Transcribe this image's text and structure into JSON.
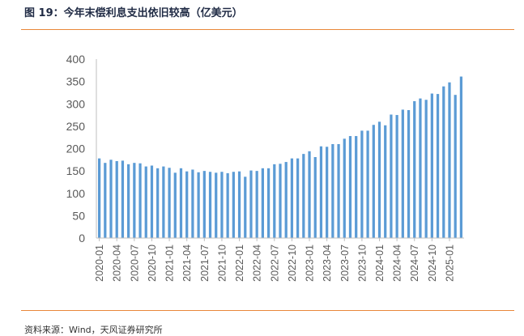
{
  "title": "图 19：今年末偿利息支出依旧较高（亿美元）",
  "source": "资料来源：Wind，天风证券研究所",
  "chart_data": {
    "type": "bar",
    "color": "#5b9bd5",
    "ylim": [
      0,
      400
    ],
    "yticks": [
      0,
      50,
      100,
      150,
      200,
      250,
      300,
      350,
      400
    ],
    "x_tick_labels": [
      "2020-01",
      "2020-04",
      "2020-07",
      "2020-10",
      "2021-01",
      "2021-04",
      "2021-07",
      "2021-10",
      "2022-01",
      "2022-04",
      "2022-07",
      "2022-10",
      "2023-01",
      "2023-04",
      "2023-07",
      "2023-10",
      "2024-01",
      "2024-04",
      "2024-07",
      "2024-10",
      "2025-01"
    ],
    "categories": [
      "2020-01",
      "2020-02",
      "2020-03",
      "2020-04",
      "2020-05",
      "2020-06",
      "2020-07",
      "2020-08",
      "2020-09",
      "2020-10",
      "2020-11",
      "2020-12",
      "2021-01",
      "2021-02",
      "2021-03",
      "2021-04",
      "2021-05",
      "2021-06",
      "2021-07",
      "2021-08",
      "2021-09",
      "2021-10",
      "2021-11",
      "2021-12",
      "2022-01",
      "2022-02",
      "2022-03",
      "2022-04",
      "2022-05",
      "2022-06",
      "2022-07",
      "2022-08",
      "2022-09",
      "2022-10",
      "2022-11",
      "2022-12",
      "2023-01",
      "2023-02",
      "2023-03",
      "2023-04",
      "2023-05",
      "2023-06",
      "2023-07",
      "2023-08",
      "2023-09",
      "2023-10",
      "2023-11",
      "2023-12",
      "2024-01",
      "2024-02",
      "2024-03",
      "2024-04",
      "2024-05",
      "2024-06",
      "2024-07",
      "2024-08",
      "2024-09",
      "2024-10",
      "2024-11",
      "2024-12",
      "2025-01",
      "2025-02",
      "2025-03"
    ],
    "values": [
      178,
      168,
      175,
      172,
      173,
      165,
      168,
      167,
      160,
      162,
      156,
      160,
      157,
      146,
      156,
      149,
      153,
      147,
      150,
      148,
      146,
      148,
      145,
      148,
      149,
      137,
      151,
      150,
      156,
      156,
      165,
      166,
      170,
      178,
      178,
      188,
      194,
      181,
      205,
      204,
      210,
      210,
      222,
      228,
      228,
      240,
      240,
      253,
      260,
      252,
      276,
      275,
      287,
      286,
      306,
      312,
      309,
      323,
      322,
      339,
      348,
      320,
      361
    ]
  }
}
